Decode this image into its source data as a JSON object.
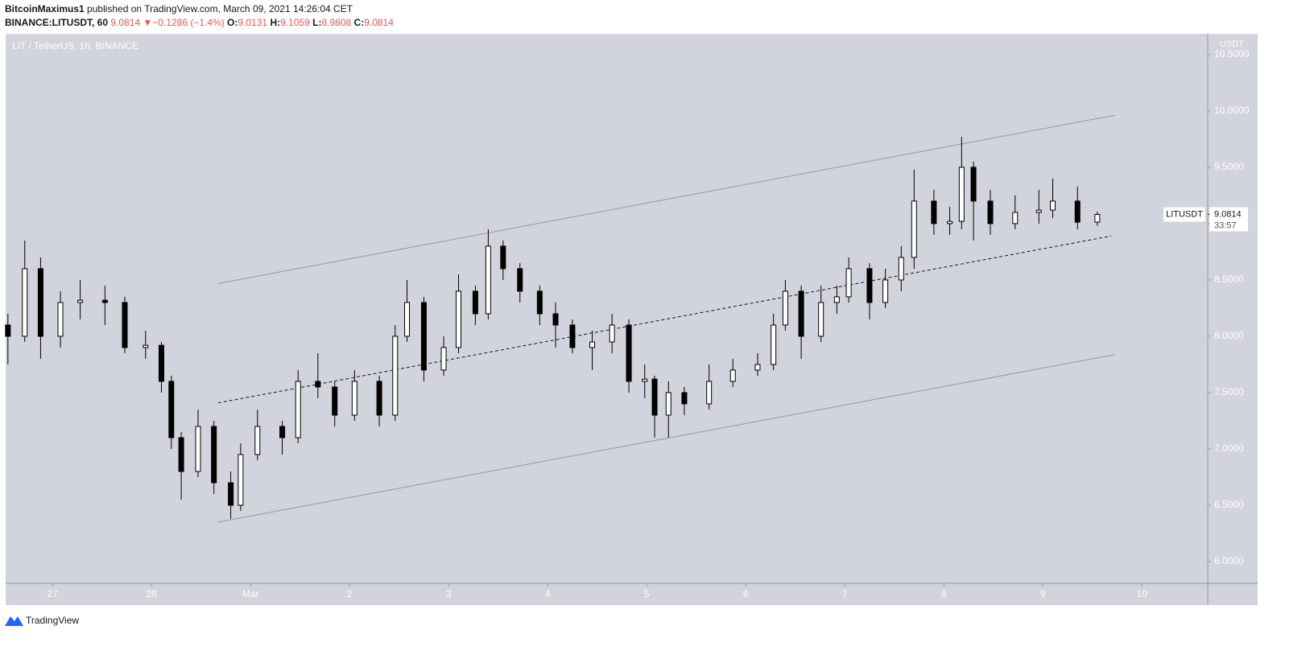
{
  "header": {
    "author": "BitcoinMaximus1",
    "published": "published on TradingView.com, March 09, 2021 14:26:04 CET",
    "symbol": "BINANCE:LITUSDT, 60",
    "last": "9.0814",
    "arrow": "▼",
    "change": "−0.1286 (−1.4%)",
    "o_label": "O:",
    "o_value": "9.0131",
    "h_label": "H:",
    "h_value": "9.1059",
    "l_label": "L:",
    "l_value": "8.9808",
    "c_label": "C:",
    "c_value": "9.0814"
  },
  "footer": {
    "brand": "TradingView"
  },
  "chart_data": {
    "type": "candlestick",
    "title": "LIT / TetherUS, 1h, BINANCE",
    "y_unit": "USDT",
    "price_label": {
      "symbol": "LITUSDT",
      "value": "9.0814",
      "countdown": "33:57"
    },
    "up_color": "#ffffff",
    "down_color": "#000000",
    "background": "#d1d4dc",
    "xlim": [
      -0.473,
      11.665
    ],
    "xticks": [
      {
        "value": 0,
        "label": "27"
      },
      {
        "value": 1,
        "label": "28"
      },
      {
        "value": 2,
        "label": "Mar"
      },
      {
        "value": 3,
        "label": "2"
      },
      {
        "value": 4,
        "label": "3"
      },
      {
        "value": 5,
        "label": "4"
      },
      {
        "value": 6,
        "label": "5"
      },
      {
        "value": 7,
        "label": "6"
      },
      {
        "value": 8,
        "label": "7"
      },
      {
        "value": 9,
        "label": "8"
      },
      {
        "value": 10,
        "label": "9"
      },
      {
        "value": 11,
        "label": "10"
      }
    ],
    "ylim": [
      5.807,
      10.685
    ],
    "yticks": [
      {
        "value": 6,
        "label": "6.0000"
      },
      {
        "value": 6.5,
        "label": "6.5000"
      },
      {
        "value": 7,
        "label": "7.0000"
      },
      {
        "value": 7.5,
        "label": "7.5000"
      },
      {
        "value": 8,
        "label": "8.0000"
      },
      {
        "value": 8.5,
        "label": "8.5000"
      },
      {
        "value": 9,
        "label": "9.0000"
      },
      {
        "value": 9.5,
        "label": "9.5000"
      },
      {
        "value": 10,
        "label": "10.0000"
      },
      {
        "value": 10.5,
        "label": "10.5000"
      }
    ],
    "x": [
      -0.45,
      -0.28,
      -0.12,
      0.08,
      0.28,
      0.53,
      0.73,
      0.94,
      1.1,
      1.2,
      1.3,
      1.47,
      1.63,
      1.8,
      1.9,
      2.07,
      2.32,
      2.48,
      2.68,
      2.85,
      3.05,
      3.3,
      3.46,
      3.58,
      3.75,
      3.95,
      4.1,
      4.27,
      4.4,
      4.55,
      4.72,
      4.92,
      5.08,
      5.25,
      5.45,
      5.65,
      5.82,
      5.98,
      6.08,
      6.22,
      6.38,
      6.63,
      6.87,
      7.12,
      7.28,
      7.4,
      7.56,
      7.76,
      7.92,
      8.04,
      8.25,
      8.41,
      8.57,
      8.7,
      8.9,
      9.06,
      9.18,
      9.3,
      9.47,
      9.72,
      9.96,
      10.1,
      10.35,
      10.55
    ],
    "open": [
      8.1,
      8.0,
      8.6,
      8.0,
      8.3,
      8.32,
      8.3,
      7.9,
      7.92,
      7.6,
      7.1,
      6.8,
      7.2,
      6.7,
      6.5,
      6.95,
      7.2,
      7.1,
      7.6,
      7.55,
      7.3,
      7.6,
      7.3,
      8.0,
      8.3,
      7.7,
      7.9,
      8.4,
      8.2,
      8.8,
      8.6,
      8.4,
      8.2,
      8.1,
      7.9,
      7.95,
      8.1,
      7.6,
      7.62,
      7.3,
      7.5,
      7.4,
      7.6,
      7.7,
      7.75,
      8.1,
      8.4,
      8.0,
      8.3,
      8.35,
      8.6,
      8.3,
      8.5,
      8.7,
      9.2,
      9.0,
      9.02,
      9.5,
      9.2,
      9.0,
      9.1,
      9.12,
      9.2,
      9.0131
    ],
    "high": [
      8.2,
      8.85,
      8.7,
      8.4,
      8.5,
      8.45,
      8.35,
      8.05,
      7.95,
      7.65,
      7.15,
      7.35,
      7.25,
      6.8,
      7.05,
      7.35,
      7.25,
      7.7,
      7.85,
      7.6,
      7.7,
      7.65,
      8.1,
      8.5,
      8.35,
      8.0,
      8.55,
      8.45,
      8.95,
      8.85,
      8.65,
      8.45,
      8.3,
      8.15,
      8.05,
      8.2,
      8.15,
      7.75,
      7.65,
      7.6,
      7.55,
      7.75,
      7.8,
      7.85,
      8.2,
      8.5,
      8.45,
      8.45,
      8.45,
      8.7,
      8.65,
      8.6,
      8.8,
      9.48,
      9.3,
      9.15,
      9.77,
      9.55,
      9.3,
      9.25,
      9.3,
      9.4,
      9.33,
      9.1059
    ],
    "low": [
      7.75,
      7.95,
      7.8,
      7.9,
      8.15,
      8.1,
      7.85,
      7.8,
      7.5,
      7.0,
      6.55,
      6.75,
      6.6,
      6.38,
      6.45,
      6.9,
      6.95,
      7.05,
      7.45,
      7.2,
      7.25,
      7.2,
      7.25,
      7.95,
      7.6,
      7.65,
      7.85,
      8.1,
      8.15,
      8.5,
      8.3,
      8.1,
      7.9,
      7.85,
      7.7,
      7.85,
      7.5,
      7.45,
      7.1,
      7.1,
      7.3,
      7.35,
      7.55,
      7.65,
      7.7,
      8.05,
      7.8,
      7.95,
      8.2,
      8.3,
      8.15,
      8.25,
      8.4,
      8.6,
      8.9,
      8.9,
      8.95,
      8.85,
      8.9,
      8.95,
      9.0,
      9.05,
      8.95,
      8.9808
    ],
    "close": [
      8.0,
      8.6,
      8.0,
      8.3,
      8.32,
      8.3,
      7.9,
      7.92,
      7.6,
      7.1,
      6.8,
      7.2,
      6.7,
      6.5,
      6.95,
      7.2,
      7.1,
      7.6,
      7.55,
      7.3,
      7.6,
      7.3,
      8.0,
      8.3,
      7.7,
      7.9,
      8.4,
      8.2,
      8.8,
      8.6,
      8.4,
      8.2,
      8.1,
      7.9,
      7.95,
      8.1,
      7.6,
      7.62,
      7.3,
      7.5,
      7.4,
      7.6,
      7.7,
      7.75,
      8.1,
      8.4,
      8.0,
      8.3,
      8.35,
      8.6,
      8.3,
      8.5,
      8.7,
      9.2,
      9.0,
      9.02,
      9.5,
      9.2,
      9.0,
      9.1,
      9.12,
      9.2,
      9.0131,
      9.0814
    ],
    "lines": [
      {
        "style": "solid",
        "color": "#9598a1",
        "x": [
          1.673,
          10.73
        ],
        "y": [
          8.468,
          9.963
        ]
      },
      {
        "style": "dashed",
        "color": "#131722",
        "x": [
          1.673,
          10.69
        ],
        "y": [
          7.409,
          8.89
        ]
      },
      {
        "style": "solid",
        "color": "#9598a1",
        "x": [
          1.673,
          10.73
        ],
        "y": [
          6.351,
          7.838
        ]
      }
    ]
  }
}
